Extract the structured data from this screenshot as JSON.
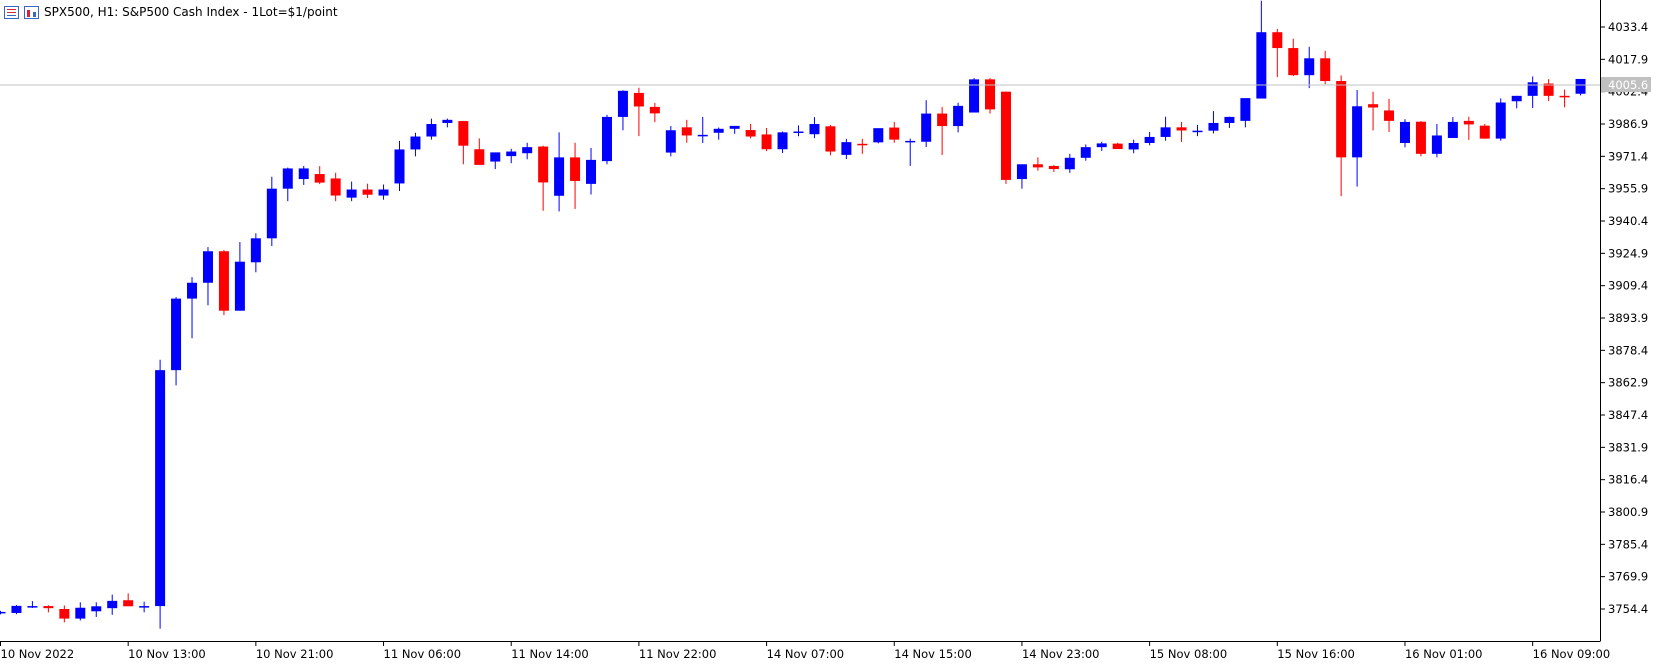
{
  "header": {
    "title": "SPX500, H1:  S&P500 Cash Index - 1Lot=$1/point",
    "icons": [
      "list-icon",
      "chart-icon"
    ]
  },
  "current_price": "4005.6",
  "colors": {
    "bull": "#0000ff",
    "bear": "#ff0000",
    "axis": "#000000",
    "price_line": "#c0c0c0",
    "price_label_bg": "#c0c0c0"
  },
  "chart_data": {
    "type": "candlestick",
    "title": "SPX500, H1:  S&P500 Cash Index - 1Lot=$1/point",
    "ylim": [
      3740.0,
      4045.0
    ],
    "y_ticks": [
      "4033.4",
      "4017.9",
      "4002.4",
      "3986.9",
      "3971.4",
      "3955.9",
      "3940.4",
      "3924.9",
      "3909.4",
      "3893.9",
      "3878.4",
      "3862.9",
      "3847.4",
      "3831.9",
      "3816.4",
      "3800.9",
      "3785.4",
      "3769.9",
      "3754.4"
    ],
    "x_ticks": [
      "10 Nov 2022",
      "10 Nov 13:00",
      "10 Nov 21:00",
      "11 Nov 06:00",
      "11 Nov 14:00",
      "11 Nov 22:00",
      "14 Nov 07:00",
      "14 Nov 15:00",
      "14 Nov 23:00",
      "15 Nov 08:00",
      "15 Nov 16:00",
      "16 Nov 01:00",
      "16 Nov 09:00"
    ],
    "candles": [
      [
        3752.5,
        3753.5,
        3751.8,
        3753.0
      ],
      [
        3752.5,
        3756.3,
        3751.9,
        3755.9
      ],
      [
        3755.3,
        3758.2,
        3754.9,
        3755.8
      ],
      [
        3755.8,
        3756.2,
        3752.8,
        3754.8
      ],
      [
        3754.4,
        3756.1,
        3748.0,
        3749.8
      ],
      [
        3749.8,
        3757.6,
        3748.9,
        3755.0
      ],
      [
        3753.3,
        3757.6,
        3750.6,
        3755.7
      ],
      [
        3754.8,
        3761.3,
        3751.6,
        3758.3
      ],
      [
        3758.6,
        3761.9,
        3757.8,
        3755.7
      ],
      [
        3755.8,
        3757.9,
        3752.8,
        3755.8
      ],
      [
        3755.8,
        3873.9,
        3745.0,
        3868.9
      ],
      [
        3868.9,
        3903.9,
        3861.6,
        3903.2
      ],
      [
        3903.2,
        3913.5,
        3884.2,
        3910.8
      ],
      [
        3910.8,
        3927.9,
        3900.0,
        3925.9
      ],
      [
        3925.9,
        3926.5,
        3895.3,
        3897.4
      ],
      [
        3897.4,
        3930.3,
        3897.4,
        3920.9
      ],
      [
        3920.6,
        3934.5,
        3915.8,
        3932.1
      ],
      [
        3932.1,
        3961.6,
        3928.4,
        3955.9
      ],
      [
        3955.9,
        3966.0,
        3949.9,
        3965.6
      ],
      [
        3960.5,
        3966.8,
        3957.7,
        3965.6
      ],
      [
        3962.9,
        3966.7,
        3958.1,
        3958.8
      ],
      [
        3960.8,
        3963.5,
        3949.9,
        3952.6
      ],
      [
        3951.6,
        3959.3,
        3949.9,
        3955.5
      ],
      [
        3955.5,
        3958.3,
        3951.4,
        3953.0
      ],
      [
        3952.6,
        3957.9,
        3950.6,
        3955.5
      ],
      [
        3958.4,
        3978.8,
        3954.8,
        3974.7
      ],
      [
        3974.7,
        3982.7,
        3971.4,
        3980.9
      ],
      [
        3980.9,
        3989.5,
        3979.4,
        3986.9
      ],
      [
        3987.4,
        3989.5,
        3985.3,
        3988.9
      ],
      [
        3988.3,
        3988.3,
        3967.6,
        3976.5
      ],
      [
        3974.8,
        3980.0,
        3967.4,
        3967.3
      ],
      [
        3968.9,
        3972.9,
        3965.3,
        3973.3
      ],
      [
        3971.5,
        3975.0,
        3968.1,
        3973.7
      ],
      [
        3972.9,
        3977.9,
        3970.0,
        3975.8
      ],
      [
        3976.1,
        3976.5,
        3945.3,
        3958.9
      ],
      [
        3952.5,
        3982.9,
        3945.0,
        3970.9
      ],
      [
        3970.9,
        3977.9,
        3946.2,
        3959.6
      ],
      [
        3958.2,
        3975.4,
        3953.1,
        3969.7
      ],
      [
        3969.1,
        3991.3,
        3967.6,
        3990.3
      ],
      [
        3990.3,
        4003.1,
        3983.9,
        4002.8
      ],
      [
        4001.8,
        4004.3,
        3981.1,
        3995.3
      ],
      [
        3995.1,
        3997.0,
        3987.8,
        3992.0
      ],
      [
        3973.2,
        3985.9,
        3971.4,
        3983.9
      ],
      [
        3985.3,
        3988.9,
        3977.9,
        3981.4
      ],
      [
        3981.1,
        3990.3,
        3977.8,
        3981.7
      ],
      [
        3982.7,
        3985.2,
        3979.4,
        3984.6
      ],
      [
        3984.6,
        3985.8,
        3982.2,
        3986.0
      ],
      [
        3984.0,
        3986.9,
        3980.0,
        3980.9
      ],
      [
        3981.9,
        3985.0,
        3973.9,
        3974.8
      ],
      [
        3974.8,
        3983.3,
        3973.0,
        3982.9
      ],
      [
        3983.1,
        3986.2,
        3981.0,
        3983.3
      ],
      [
        3982.0,
        3990.2,
        3980.1,
        3986.9
      ],
      [
        3985.8,
        3986.5,
        3971.9,
        3973.7
      ],
      [
        3972.1,
        3979.8,
        3970.1,
        3978.2
      ],
      [
        3977.4,
        3979.8,
        3972.6,
        3977.3
      ],
      [
        3978.1,
        3984.6,
        3977.6,
        3984.9
      ],
      [
        3985.2,
        3987.9,
        3977.9,
        3979.4
      ],
      [
        3978.4,
        3979.9,
        3966.8,
        3978.8
      ],
      [
        3978.4,
        3998.3,
        3975.9,
        3991.9
      ],
      [
        3991.9,
        3995.0,
        3972.0,
        3985.9
      ],
      [
        3985.9,
        3997.1,
        3982.9,
        3995.6
      ],
      [
        3992.4,
        4008.9,
        3992.4,
        4008.3
      ],
      [
        4008.3,
        4008.9,
        3991.9,
        3993.9
      ],
      [
        4002.4,
        4002.4,
        3958.2,
        3960.1
      ],
      [
        3960.5,
        3967.0,
        3955.9,
        3967.6
      ],
      [
        3967.6,
        3970.9,
        3964.5,
        3966.1
      ],
      [
        3966.8,
        3967.2,
        3963.9,
        3965.3
      ],
      [
        3965.2,
        3972.6,
        3963.5,
        3970.7
      ],
      [
        3970.7,
        3977.1,
        3969.3,
        3975.8
      ],
      [
        3975.8,
        3978.4,
        3974.0,
        3977.6
      ],
      [
        3977.5,
        3977.9,
        3975.0,
        3974.9
      ],
      [
        3974.7,
        3979.4,
        3972.9,
        3977.8
      ],
      [
        3977.8,
        3983.1,
        3976.7,
        3980.7
      ],
      [
        3980.7,
        3990.4,
        3978.9,
        3985.3
      ],
      [
        3985.3,
        3987.9,
        3978.3,
        3983.8
      ],
      [
        3983.7,
        3986.5,
        3981.1,
        3983.7
      ],
      [
        3983.7,
        3993.1,
        3982.4,
        3987.4
      ],
      [
        3987.4,
        3990.4,
        3985.0,
        3990.3
      ],
      [
        3988.4,
        3998.9,
        3985.3,
        3999.3
      ],
      [
        3999.1,
        4046.0,
        3999.3,
        4030.9
      ],
      [
        4030.9,
        4032.5,
        4009.4,
        4023.3
      ],
      [
        4023.3,
        4027.8,
        4009.9,
        4010.3
      ],
      [
        4010.3,
        4023.9,
        4004.1,
        4018.4
      ],
      [
        4018.4,
        4021.9,
        4006.0,
        4007.5
      ],
      [
        4007.5,
        4010.2,
        3952.3,
        3970.9
      ],
      [
        3970.9,
        4003.2,
        3956.9,
        3995.4
      ],
      [
        3996.4,
        4002.4,
        3983.8,
        3994.8
      ],
      [
        3993.4,
        3998.9,
        3983.1,
        3988.4
      ],
      [
        3977.8,
        3989.2,
        3975.7,
        3987.9
      ],
      [
        3988.0,
        3988.3,
        3971.4,
        3972.6
      ],
      [
        3972.6,
        3986.9,
        3970.9,
        3981.4
      ],
      [
        3980.2,
        3990.2,
        3980.7,
        3987.9
      ],
      [
        3988.4,
        3990.4,
        3979.3,
        3986.7
      ],
      [
        3986.1,
        3986.9,
        3979.8,
        3979.9
      ],
      [
        3979.9,
        3999.2,
        3978.9,
        3997.2
      ],
      [
        3997.8,
        4000.4,
        3994.4,
        4000.4
      ],
      [
        4000.4,
        4009.7,
        3994.6,
        4006.9
      ],
      [
        4006.3,
        4008.4,
        3997.9,
        4000.4
      ],
      [
        4000.4,
        4003.4,
        3994.9,
        3999.8
      ],
      [
        4001.4,
        4006.7,
        4000.6,
        4008.5
      ]
    ]
  }
}
